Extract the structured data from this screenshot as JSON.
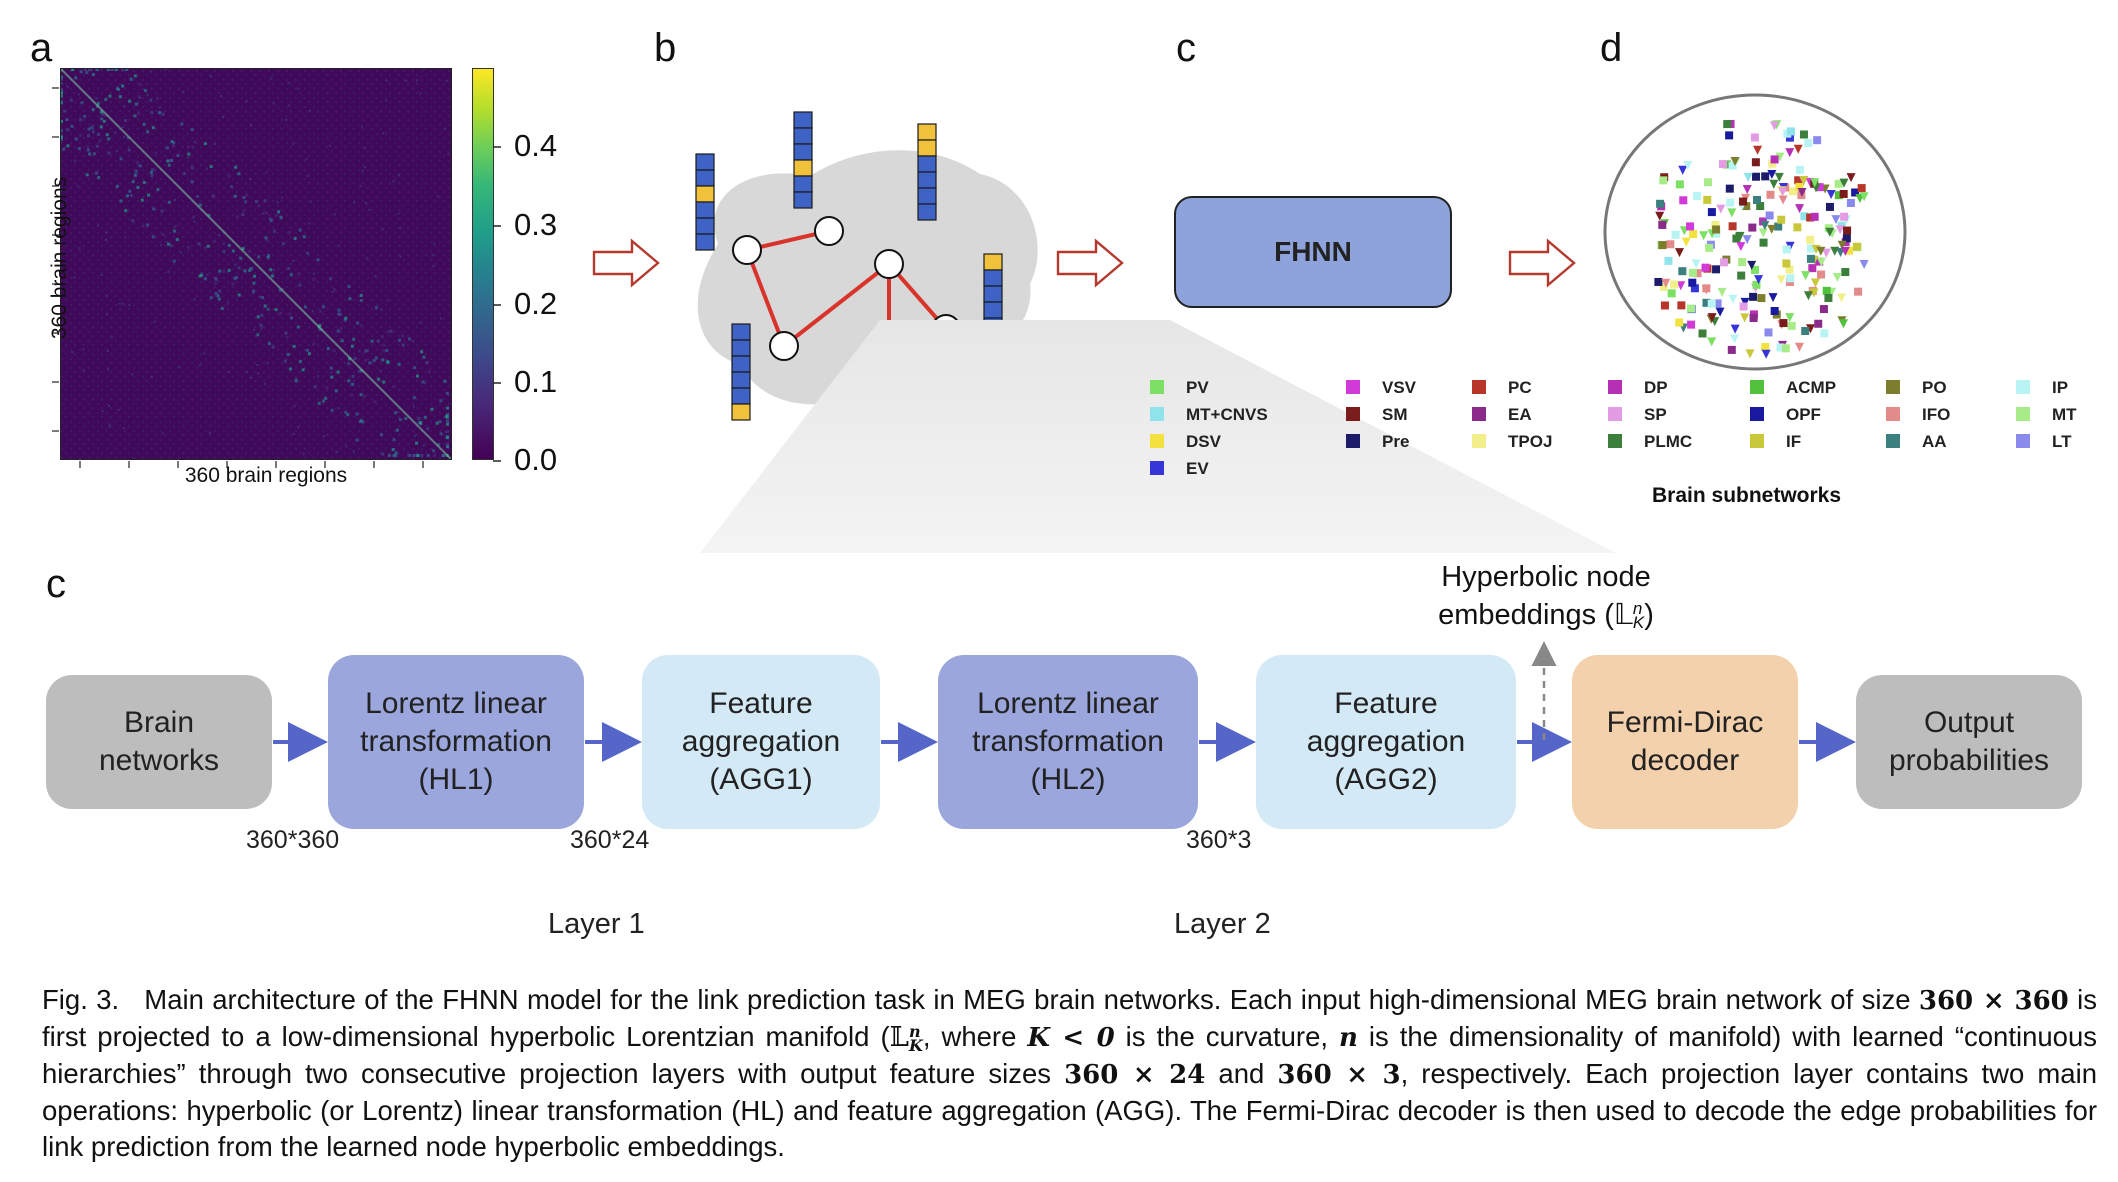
{
  "panels": {
    "a": "a",
    "b": "b",
    "c_top": "c",
    "d": "d",
    "c_bottom": "c"
  },
  "heatmap": {
    "ylabel": "360 brain regions",
    "xlabel": "360 brain regions",
    "colorbar_ticks": [
      "0.4",
      "0.3",
      "0.2",
      "0.1",
      "0.0"
    ],
    "colormap": "viridis"
  },
  "fhnn_box": {
    "label": "FHNN",
    "color": "#8ea3dc"
  },
  "legend": {
    "title": "Brain subnetworks",
    "items": [
      {
        "label": "PV",
        "color": "#7be063"
      },
      {
        "label": "MT+CNVS",
        "color": "#8fe3ea"
      },
      {
        "label": "DSV",
        "color": "#f2e13f"
      },
      {
        "label": "EV",
        "color": "#3535d8"
      },
      {
        "label": "VSV",
        "color": "#d13ad8"
      },
      {
        "label": "SM",
        "color": "#7a1c1c"
      },
      {
        "label": "Pre",
        "color": "#1c1c6b"
      },
      {
        "label": "PC",
        "color": "#b8352a"
      },
      {
        "label": "EA",
        "color": "#8a2a8a"
      },
      {
        "label": "TPOJ",
        "color": "#f2ee8a"
      },
      {
        "label": "DP",
        "color": "#b530b5"
      },
      {
        "label": "SP",
        "color": "#e39be3"
      },
      {
        "label": "PLMC",
        "color": "#3b7f3b"
      },
      {
        "label": "ACMP",
        "color": "#52c23c"
      },
      {
        "label": "OPF",
        "color": "#1a1aa0"
      },
      {
        "label": "IF",
        "color": "#c8c83a"
      },
      {
        "label": "PO",
        "color": "#7d7d2e"
      },
      {
        "label": "IFO",
        "color": "#e38a8a"
      },
      {
        "label": "AA",
        "color": "#3b7f7f"
      },
      {
        "label": "IP",
        "color": "#b8f4f4"
      },
      {
        "label": "MT",
        "color": "#a8ec8a"
      },
      {
        "label": "LT",
        "color": "#8a8aec"
      }
    ]
  },
  "pipeline": {
    "boxes": [
      {
        "lines": [
          "Brain",
          "networks"
        ],
        "color": "#bdbdbd"
      },
      {
        "lines": [
          "Lorentz linear",
          "transformation",
          "(HL1)"
        ],
        "color": "#9aa6dc"
      },
      {
        "lines": [
          "Feature",
          "aggregation",
          "(AGG1)"
        ],
        "color": "#d3e9f6"
      },
      {
        "lines": [
          "Lorentz linear",
          "transformation",
          "(HL2)"
        ],
        "color": "#9aa6dc"
      },
      {
        "lines": [
          "Feature",
          "aggregation",
          "(AGG2)"
        ],
        "color": "#d3e9f6"
      },
      {
        "lines": [
          "Fermi-Dirac",
          "decoder"
        ],
        "color": "#f3d1ac"
      },
      {
        "lines": [
          "Output",
          "probabilities"
        ],
        "color": "#bdbdbd"
      }
    ],
    "dims": [
      "360*360",
      "360*24",
      "360*3"
    ],
    "layers": [
      "Layer 1",
      "Layer 2"
    ],
    "embedding_label_line1": "Hyperbolic node",
    "embedding_label_line2": "embeddings (𝕃",
    "embedding_label_sup": "n",
    "embedding_label_sub": "K",
    "embedding_label_end": ")",
    "arrow_color": "#5566c8"
  },
  "caption": {
    "fig": "Fig. 3.",
    "t1": "Main architecture of the FHNN model for the link prediction task in MEG brain networks. Each input high-dimensional MEG brain network of size ",
    "m1": "360 × 360",
    "t2": " is first projected to a low-dimensional hyperbolic Lorentzian manifold (",
    "m2": "𝕃",
    "m2sup": "n",
    "m2sub": "K",
    "t3": ", where ",
    "m3": "K < 0",
    "t4": " is the curvature, ",
    "m4": "n",
    "t5": " is the dimensionality of manifold) with learned “continuous hierarchies” through two consecutive projection layers with output feature sizes ",
    "m5": "360 × 24",
    "t6": " and ",
    "m6": "360 × 3",
    "t7": ", respectively. Each projection layer contains two main operations: hyperbolic (or Lorentz) linear transformation (HL) and feature aggregation (AGG). The Fermi-Dirac decoder is then used to decode the edge probabilities for link prediction from the learned node hyperbolic embeddings."
  }
}
